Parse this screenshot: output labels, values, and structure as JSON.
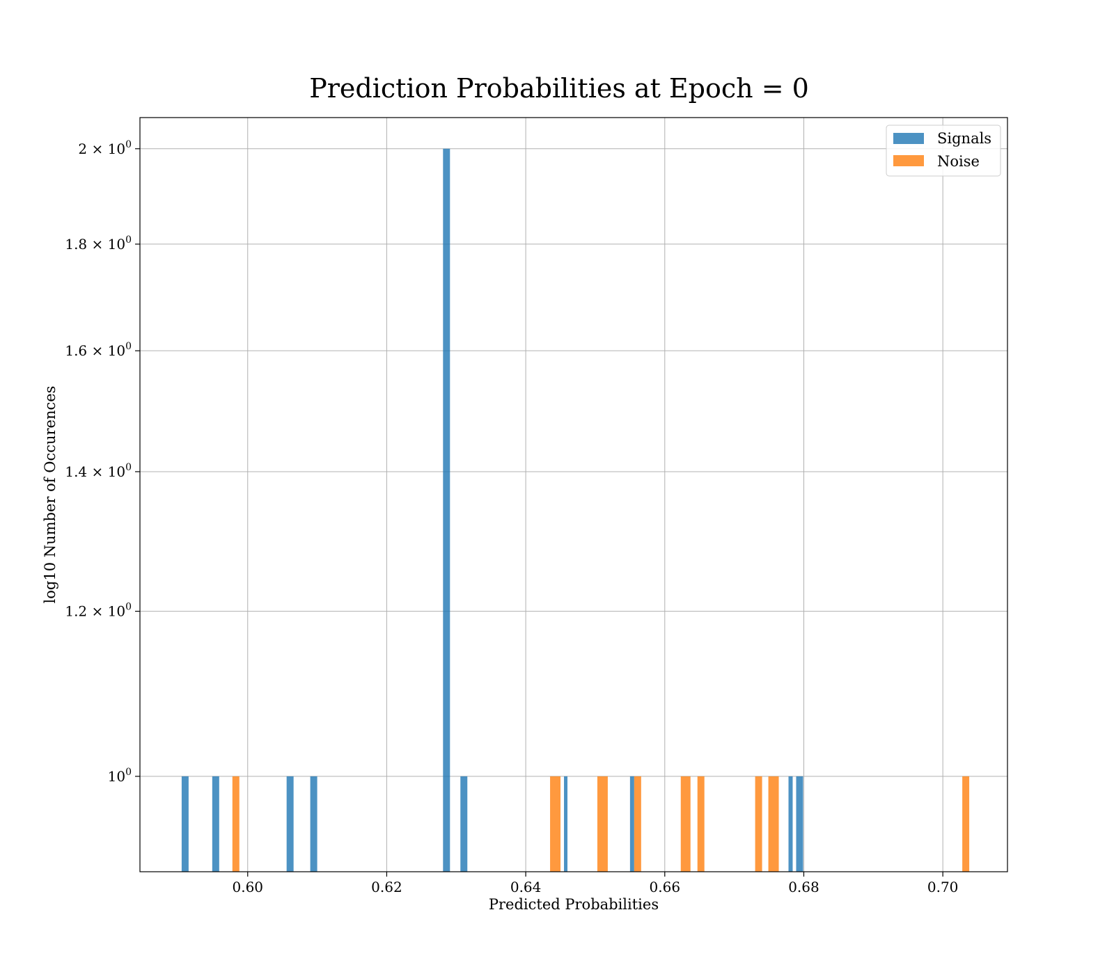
{
  "chart_data": {
    "type": "bar",
    "title": "Prediction Probabilities at Epoch = 0",
    "xlabel": "Predicted Probabilities",
    "ylabel": "log10 Number of Occurences",
    "xlim": [
      0.5845,
      0.7093
    ],
    "ylim": [
      0.9,
      2.07
    ],
    "yscale": "log",
    "grid": true,
    "legend_position": "top-right",
    "x_ticks": [
      {
        "value": 0.6,
        "label": "0.60"
      },
      {
        "value": 0.62,
        "label": "0.62"
      },
      {
        "value": 0.64,
        "label": "0.64"
      },
      {
        "value": 0.66,
        "label": "0.66"
      },
      {
        "value": 0.68,
        "label": "0.68"
      },
      {
        "value": 0.7,
        "label": "0.70"
      }
    ],
    "y_ticks": [
      {
        "value": 1.0,
        "mantissa": "",
        "exponent": "0"
      },
      {
        "value": 1.2,
        "mantissa": "1.2",
        "exponent": "0"
      },
      {
        "value": 1.4,
        "mantissa": "1.4",
        "exponent": "0"
      },
      {
        "value": 1.6,
        "mantissa": "1.6",
        "exponent": "0"
      },
      {
        "value": 1.8,
        "mantissa": "1.8",
        "exponent": "0"
      },
      {
        "value": 2.0,
        "mantissa": "2",
        "exponent": "0"
      }
    ],
    "series": [
      {
        "name": "Signals",
        "color": "#1f77b4",
        "bins": [
          {
            "x0": 0.5905,
            "x1": 0.5915,
            "count": 1
          },
          {
            "x0": 0.5949,
            "x1": 0.5959,
            "count": 1
          },
          {
            "x0": 0.6056,
            "x1": 0.6066,
            "count": 1
          },
          {
            "x0": 0.609,
            "x1": 0.61,
            "count": 1
          },
          {
            "x0": 0.6281,
            "x1": 0.6291,
            "count": 2
          },
          {
            "x0": 0.6306,
            "x1": 0.6316,
            "count": 1
          },
          {
            "x0": 0.6455,
            "x1": 0.646,
            "count": 1
          },
          {
            "x0": 0.655,
            "x1": 0.6556,
            "count": 1
          },
          {
            "x0": 0.6778,
            "x1": 0.6784,
            "count": 1
          },
          {
            "x0": 0.6789,
            "x1": 0.6799,
            "count": 1
          }
        ]
      },
      {
        "name": "Noise",
        "color": "#ff7f0e",
        "bins": [
          {
            "x0": 0.5978,
            "x1": 0.5988,
            "count": 1
          },
          {
            "x0": 0.6435,
            "x1": 0.645,
            "count": 1
          },
          {
            "x0": 0.6503,
            "x1": 0.6518,
            "count": 1
          },
          {
            "x0": 0.6556,
            "x1": 0.6566,
            "count": 1
          },
          {
            "x0": 0.6623,
            "x1": 0.6637,
            "count": 1
          },
          {
            "x0": 0.6647,
            "x1": 0.6657,
            "count": 1
          },
          {
            "x0": 0.673,
            "x1": 0.674,
            "count": 1
          },
          {
            "x0": 0.6749,
            "x1": 0.6764,
            "count": 1
          },
          {
            "x0": 0.7028,
            "x1": 0.7038,
            "count": 1
          }
        ]
      }
    ]
  }
}
